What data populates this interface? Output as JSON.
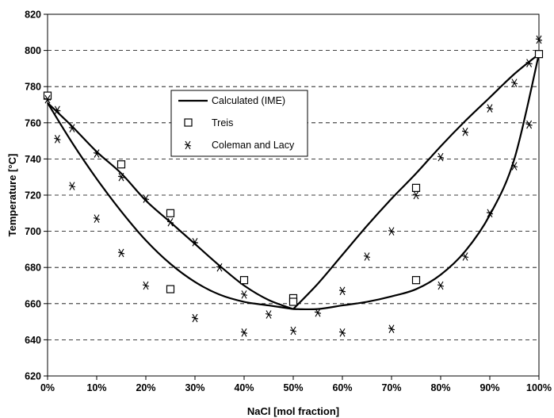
{
  "chart_data": {
    "type": "scatter",
    "xlabel": "NaCl [mol fraction]",
    "ylabel": "Temperature [°C]",
    "xlim": [
      0,
      1
    ],
    "ylim": [
      620,
      820
    ],
    "x_ticks": [
      0,
      0.1,
      0.2,
      0.3,
      0.4,
      0.5,
      0.6,
      0.7,
      0.8,
      0.9,
      1.0
    ],
    "x_tick_labels": [
      "0%",
      "10%",
      "20%",
      "30%",
      "40%",
      "50%",
      "60%",
      "70%",
      "80%",
      "90%",
      "100%"
    ],
    "y_ticks": [
      620,
      640,
      660,
      680,
      700,
      720,
      740,
      760,
      780,
      800,
      820
    ],
    "y_tick_labels": [
      "620",
      "640",
      "660",
      "680",
      "700",
      "720",
      "740",
      "760",
      "780",
      "800",
      "820"
    ],
    "grid": "horizontal dashed",
    "legend_position": "upper-left-center",
    "series": [
      {
        "name": "Calculated (IME)",
        "style": "line",
        "color": "#000000",
        "segments": [
          {
            "x": [
              0,
              0.05,
              0.1,
              0.15,
              0.2,
              0.25,
              0.3,
              0.35,
              0.4,
              0.45,
              0.5
            ],
            "y": [
              771,
              749,
              729,
              711,
              695,
              682,
              672,
              665,
              661,
              659,
              657
            ]
          },
          {
            "x": [
              0,
              0.05,
              0.1,
              0.15,
              0.2,
              0.25,
              0.3,
              0.35,
              0.4,
              0.45,
              0.5
            ],
            "y": [
              771,
              758,
              744,
              732,
              717,
              705,
              693,
              681,
              670,
              662,
              657
            ]
          },
          {
            "x": [
              0.5,
              0.55,
              0.6,
              0.65,
              0.7,
              0.75,
              0.8,
              0.85,
              0.9,
              0.95,
              1.0
            ],
            "y": [
              657,
              671,
              687,
              703,
              718,
              732,
              747,
              761,
              774,
              787,
              798
            ]
          },
          {
            "x": [
              0.5,
              0.55,
              0.6,
              0.65,
              0.7,
              0.75,
              0.8,
              0.85,
              0.9,
              0.95,
              1.0
            ],
            "y": [
              657,
              657,
              659,
              661,
              664,
              668,
              676,
              689,
              709,
              740,
              798
            ]
          }
        ]
      },
      {
        "name": "Treis",
        "style": "open-square",
        "color": "#000000",
        "x": [
          0,
          0.15,
          0.25,
          0.25,
          0.4,
          0.5,
          0.5,
          0.75,
          0.75,
          1.0
        ],
        "y": [
          775,
          737,
          710,
          668,
          673,
          663,
          661,
          724,
          673,
          798
        ]
      },
      {
        "name": "Coleman and Lacy",
        "style": "asterisk",
        "color": "#000000",
        "x": [
          0,
          0.02,
          0.02,
          0.05,
          0.05,
          0.1,
          0.1,
          0.15,
          0.15,
          0.2,
          0.2,
          0.25,
          0.3,
          0.3,
          0.35,
          0.4,
          0.4,
          0.45,
          0.5,
          0.55,
          0.6,
          0.6,
          0.65,
          0.7,
          0.7,
          0.75,
          0.8,
          0.8,
          0.85,
          0.85,
          0.9,
          0.9,
          0.95,
          0.95,
          0.98,
          0.98,
          1.0
        ],
        "y": [
          773,
          767,
          751,
          757,
          725,
          743,
          707,
          730,
          688,
          718,
          670,
          705,
          694,
          652,
          680,
          665,
          644,
          654,
          645,
          655,
          667,
          644,
          686,
          700,
          646,
          720,
          741,
          670,
          755,
          686,
          768,
          710,
          782,
          736,
          793,
          759,
          806
        ]
      }
    ]
  }
}
